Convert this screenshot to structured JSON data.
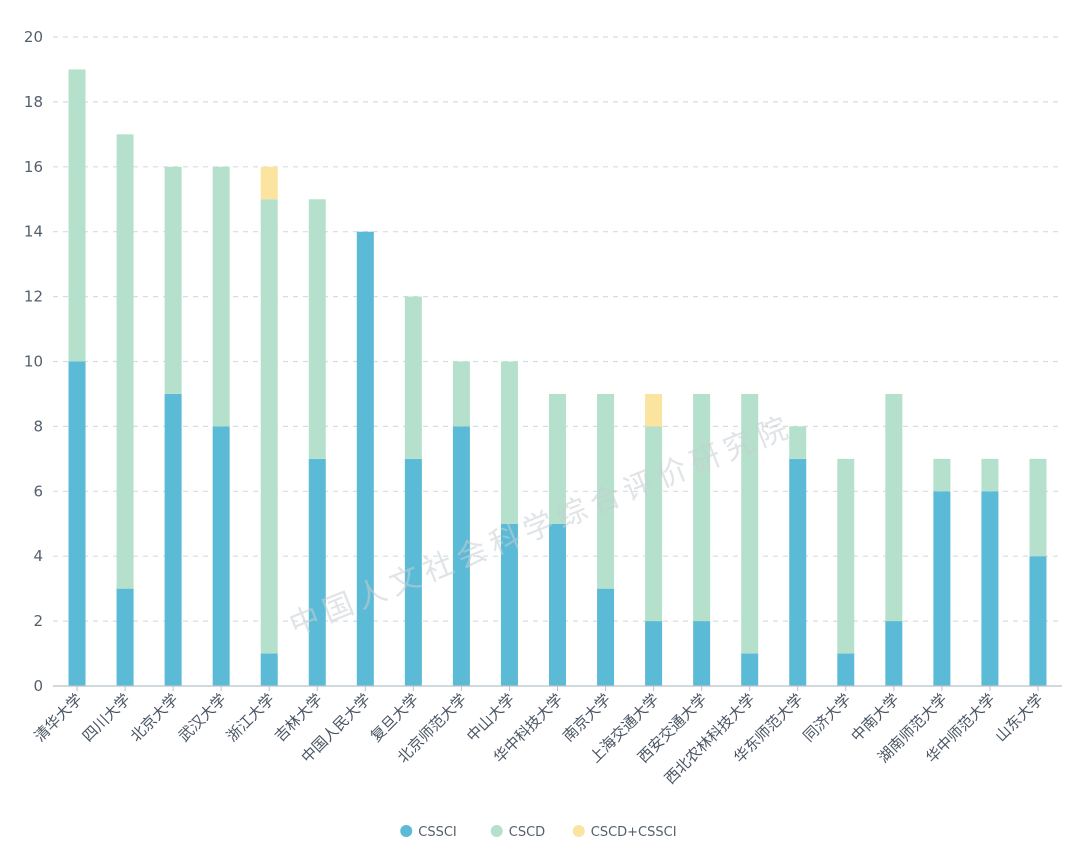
{
  "chart_data": {
    "type": "bar",
    "stacked": true,
    "categories": [
      "清华大学",
      "四川大学",
      "北京大学",
      "武汉大学",
      "浙江大学",
      "吉林大学",
      "中国人民大学",
      "复旦大学",
      "北京师范大学",
      "中山大学",
      "华中科技大学",
      "南京大学",
      "上海交通大学",
      "西安交通大学",
      "西北农林科技大学",
      "华东师范大学",
      "同济大学",
      "中南大学",
      "湖南师范大学",
      "华中师范大学",
      "山东大学"
    ],
    "series": [
      {
        "name": "CSSCI",
        "color": "#5bbad5",
        "values": [
          10,
          3,
          9,
          8,
          1,
          7,
          14,
          7,
          8,
          5,
          5,
          3,
          2,
          2,
          1,
          7,
          1,
          2,
          6,
          6,
          4
        ]
      },
      {
        "name": "CSCD",
        "color": "#b5e0cc",
        "values": [
          9,
          14,
          7,
          8,
          14,
          8,
          0,
          5,
          2,
          5,
          4,
          6,
          6,
          7,
          8,
          1,
          6,
          7,
          1,
          1,
          3
        ]
      },
      {
        "name": "CSCD+CSSCI",
        "color": "#fbe3a0",
        "values": [
          0,
          0,
          0,
          0,
          1,
          0,
          0,
          0,
          0,
          0,
          0,
          0,
          1,
          0,
          0,
          0,
          0,
          0,
          0,
          0,
          0
        ]
      }
    ],
    "ylim": [
      0,
      20
    ],
    "yticks": [
      0,
      2,
      4,
      6,
      8,
      10,
      12,
      14,
      16,
      18,
      20
    ],
    "grid": true,
    "legend_position": "bottom-center"
  },
  "watermark": "中国人文社会科学综合评价研究院"
}
